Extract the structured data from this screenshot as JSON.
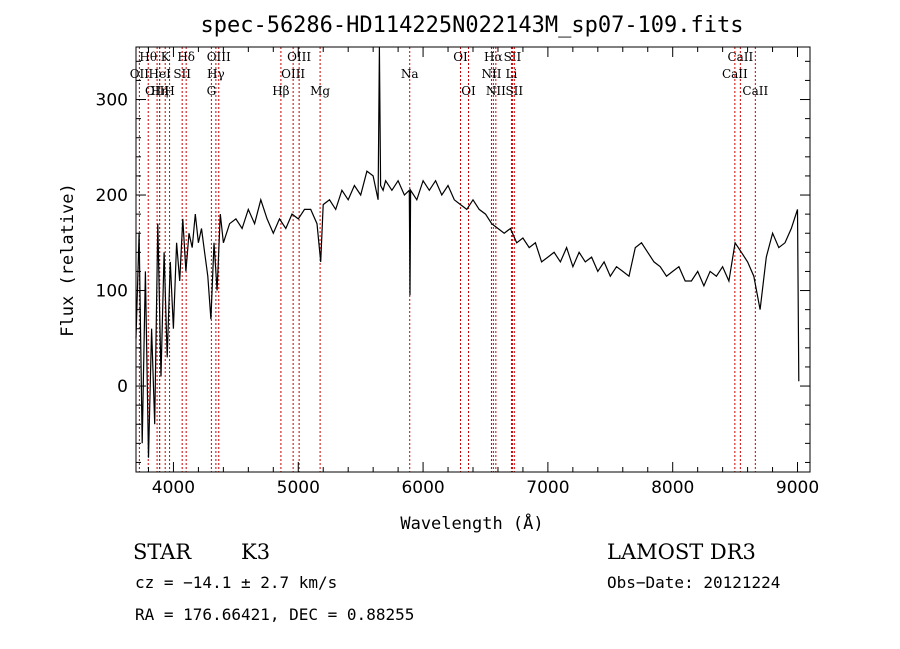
{
  "chart_data": {
    "type": "line",
    "title": "spec-56286-HD114225N022143M_sp07-109.fits",
    "xlabel": "Wavelength (Å)",
    "ylabel": "Flux (relative)",
    "xlim": [
      3700,
      9100
    ],
    "ylim": [
      -90,
      355
    ],
    "xticks": [
      4000,
      5000,
      6000,
      7000,
      8000,
      9000
    ],
    "yticks": [
      0,
      100,
      200,
      300
    ],
    "grid": false,
    "series": [
      {
        "x": [
          3700,
          3725,
          3750,
          3775,
          3800,
          3825,
          3850,
          3875,
          3900,
          3925,
          3950,
          3975,
          4000,
          4025,
          4050,
          4075,
          4100,
          4125,
          4150,
          4175,
          4200,
          4225,
          4250,
          4275,
          4300,
          4325,
          4350,
          4375,
          4400,
          4450,
          4500,
          4550,
          4600,
          4650,
          4700,
          4750,
          4800,
          4850,
          4900,
          4950,
          5000,
          5050,
          5100,
          5150,
          5180,
          5200,
          5250,
          5300,
          5350,
          5400,
          5450,
          5500,
          5550,
          5600,
          5640,
          5650,
          5660,
          5680,
          5700,
          5750,
          5800,
          5850,
          5890,
          5895,
          5900,
          5950,
          6000,
          6050,
          6100,
          6150,
          6200,
          6250,
          6300,
          6350,
          6400,
          6450,
          6500,
          6550,
          6600,
          6650,
          6700,
          6750,
          6800,
          6850,
          6900,
          6950,
          7000,
          7050,
          7100,
          7150,
          7200,
          7250,
          7300,
          7350,
          7400,
          7450,
          7500,
          7550,
          7600,
          7650,
          7700,
          7750,
          7800,
          7850,
          7900,
          7950,
          8000,
          8050,
          8100,
          8150,
          8200,
          8250,
          8300,
          8350,
          8400,
          8450,
          8500,
          8550,
          8600,
          8650,
          8700,
          8750,
          8800,
          8850,
          8900,
          8950,
          9000,
          9010
        ],
        "y": [
          50,
          160,
          -60,
          120,
          -75,
          60,
          -40,
          170,
          10,
          140,
          30,
          130,
          60,
          150,
          110,
          175,
          120,
          160,
          145,
          180,
          150,
          165,
          140,
          115,
          70,
          150,
          100,
          180,
          150,
          170,
          175,
          165,
          185,
          170,
          195,
          175,
          160,
          175,
          165,
          180,
          175,
          185,
          185,
          170,
          130,
          190,
          195,
          185,
          205,
          195,
          210,
          200,
          225,
          220,
          195,
          355,
          210,
          205,
          215,
          205,
          215,
          200,
          205,
          95,
          205,
          195,
          215,
          205,
          215,
          200,
          210,
          195,
          190,
          185,
          195,
          185,
          180,
          170,
          165,
          160,
          165,
          150,
          155,
          145,
          150,
          130,
          135,
          140,
          130,
          145,
          125,
          140,
          130,
          135,
          120,
          130,
          115,
          125,
          120,
          115,
          145,
          150,
          140,
          130,
          125,
          115,
          120,
          125,
          110,
          110,
          120,
          105,
          120,
          115,
          125,
          110,
          150,
          140,
          130,
          115,
          80,
          135,
          160,
          145,
          150,
          165,
          185,
          5
        ]
      }
    ]
  },
  "lines": [
    {
      "label": "Hθ",
      "x": 3798,
      "row": 0
    },
    {
      "label": "OII",
      "x": 3727,
      "row": 1
    },
    {
      "label": "OIII",
      "x": 3869,
      "row": 2
    },
    {
      "label": "Hη",
      "x": 3889,
      "row": 2
    },
    {
      "label": "K",
      "x": 3934,
      "row": 0
    },
    {
      "label": "HeI",
      "x": 3890,
      "row": 1
    },
    {
      "label": "H",
      "x": 3969,
      "row": 2
    },
    {
      "label": "SII",
      "x": 4070,
      "row": 1
    },
    {
      "label": "Hδ",
      "x": 4102,
      "row": 0
    },
    {
      "label": "OIII",
      "x": 4363,
      "row": 0
    },
    {
      "label": "Hγ",
      "x": 4340,
      "row": 1
    },
    {
      "label": "G",
      "x": 4304,
      "row": 2
    },
    {
      "label": "Hβ",
      "x": 4861,
      "row": 2
    },
    {
      "label": "OIII",
      "x": 4959,
      "row": 1
    },
    {
      "label": "OIII",
      "x": 5007,
      "row": 0
    },
    {
      "label": "Mg",
      "x": 5175,
      "row": 2
    },
    {
      "label": "Na",
      "x": 5893,
      "row": 1
    },
    {
      "label": "OI",
      "x": 6300,
      "row": 0
    },
    {
      "label": "OI",
      "x": 6364,
      "row": 2
    },
    {
      "label": "Hα",
      "x": 6563,
      "row": 0
    },
    {
      "label": "NII",
      "x": 6548,
      "row": 1
    },
    {
      "label": "NII",
      "x": 6583,
      "row": 2
    },
    {
      "label": "SII",
      "x": 6716,
      "row": 0
    },
    {
      "label": "Li",
      "x": 6708,
      "row": 1
    },
    {
      "label": "SII",
      "x": 6731,
      "row": 2
    },
    {
      "label": "CaII",
      "x": 8542,
      "row": 0
    },
    {
      "label": "CaII",
      "x": 8498,
      "row": 1
    },
    {
      "label": "CaII",
      "x": 8662,
      "row": 2
    }
  ],
  "colors": {
    "line_marker": "#cc0000",
    "spectrum": "#000000",
    "axis": "#000000"
  },
  "info": {
    "class_label": "STAR",
    "subclass": "K3",
    "survey": "LAMOST DR3",
    "cz": "cz = −14.1 ± 2.7 km/s",
    "obs_date": "Obs−Date: 20121224",
    "coords": "RA = 176.66421, DEC =    0.88255"
  }
}
